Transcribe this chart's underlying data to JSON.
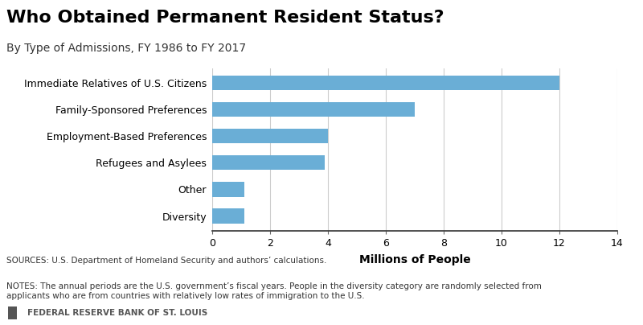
{
  "title": "Who Obtained Permanent Resident Status?",
  "subtitle": "By Type of Admissions, FY 1986 to FY 2017",
  "categories": [
    "Immediate Relatives of U.S. Citizens",
    "Family-Sponsored Preferences",
    "Employment-Based Preferences",
    "Refugees and Asylees",
    "Other",
    "Diversity"
  ],
  "values": [
    12.0,
    7.0,
    4.0,
    3.9,
    1.1,
    1.1
  ],
  "bar_color": "#6aaed6",
  "xlabel": "Millions of People",
  "xlim": [
    0,
    14
  ],
  "xticks": [
    0,
    2,
    4,
    6,
    8,
    10,
    12,
    14
  ],
  "background_color": "#ffffff",
  "sources_text": "SOURCES: U.S. Department of Homeland Security and authors’ calculations.",
  "notes_text": "NOTES: The annual periods are the U.S. government’s fiscal years. People in the diversity category are randomly selected from\napplicants who are from countries with relatively low rates of immigration to the U.S.",
  "footer_text": "FEDERAL RESERVE BANK OF ST. LOUIS",
  "footer_square_color": "#555555",
  "footer_text_color": "#555555",
  "grid_color": "#cccccc",
  "title_fontsize": 16,
  "subtitle_fontsize": 10,
  "label_fontsize": 9,
  "xlabel_fontsize": 10,
  "tick_fontsize": 9,
  "note_fontsize": 7.5,
  "footer_fontsize": 7.5
}
